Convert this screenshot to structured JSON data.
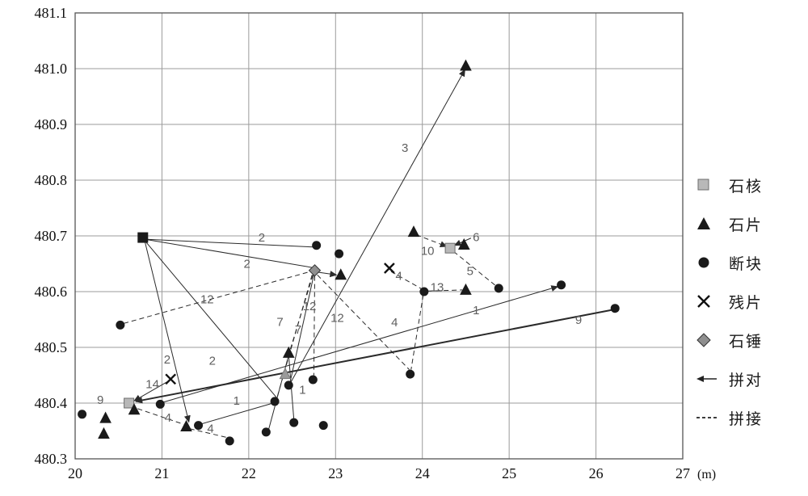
{
  "figure": {
    "unit_label": "(m)"
  },
  "legend": {
    "items": [
      {
        "label": "石核",
        "marker": "square-gray"
      },
      {
        "label": "石片",
        "marker": "triangle-black"
      },
      {
        "label": "断块",
        "marker": "circle-black"
      },
      {
        "label": "残片",
        "marker": "x-mark"
      },
      {
        "label": "石锤",
        "marker": "diamond-gray"
      },
      {
        "label": "拼对",
        "marker": "solid-arrow"
      },
      {
        "label": "拼接",
        "marker": "dashed-line"
      }
    ]
  },
  "chart_data": {
    "type": "scatter",
    "title": "",
    "xlabel": "(m)",
    "ylabel": "",
    "xlim": [
      20,
      27
    ],
    "ylim": [
      480.3,
      481.1
    ],
    "x_ticks": [
      "20",
      "21",
      "22",
      "23",
      "24",
      "25",
      "26",
      "27"
    ],
    "y_ticks": [
      "480.3",
      "480.4",
      "480.5",
      "480.6",
      "480.7",
      "480.8",
      "480.9",
      "481.0",
      "481.1"
    ],
    "grid": true,
    "legend_position": "right",
    "series": [
      {
        "name": "石核",
        "marker": "square",
        "color": "#b8b8b8",
        "stroke": "#6e6e6e",
        "points": [
          [
            20.62,
            480.4
          ],
          [
            24.32,
            480.678
          ]
        ]
      },
      {
        "name": "石核",
        "marker": "square",
        "color": "#1a1a1a",
        "stroke": "#1a1a1a",
        "points": [
          [
            20.78,
            480.697
          ]
        ]
      },
      {
        "name": "石片",
        "marker": "triangle",
        "color": "#1a1a1a",
        "stroke": "#1a1a1a",
        "points": [
          [
            24.5,
            481.005
          ],
          [
            23.9,
            480.707
          ],
          [
            23.06,
            480.63
          ],
          [
            24.48,
            480.684
          ],
          [
            24.5,
            480.603
          ],
          [
            22.46,
            480.49
          ],
          [
            21.28,
            480.358
          ],
          [
            20.35,
            480.373
          ],
          [
            20.33,
            480.345
          ],
          [
            20.68,
            480.388
          ]
        ]
      },
      {
        "name": "石片",
        "marker": "triangle",
        "color": "#9a9a9a",
        "stroke": "#777777",
        "points": [
          [
            22.42,
            480.452
          ]
        ]
      },
      {
        "name": "断块",
        "marker": "circle",
        "color": "#1a1a1a",
        "stroke": "#1a1a1a",
        "points": [
          [
            20.08,
            480.38
          ],
          [
            20.52,
            480.54
          ],
          [
            22.78,
            480.683
          ],
          [
            23.04,
            480.668
          ],
          [
            25.6,
            480.612
          ],
          [
            26.22,
            480.57
          ],
          [
            24.88,
            480.606
          ],
          [
            24.02,
            480.6
          ],
          [
            23.86,
            480.452
          ],
          [
            22.74,
            480.442
          ],
          [
            22.46,
            480.432
          ],
          [
            22.3,
            480.403
          ],
          [
            22.52,
            480.365
          ],
          [
            22.86,
            480.36
          ],
          [
            22.2,
            480.348
          ],
          [
            21.78,
            480.332
          ],
          [
            21.42,
            480.36
          ],
          [
            20.98,
            480.398
          ]
        ]
      },
      {
        "name": "残片",
        "marker": "x",
        "color": "#111111",
        "stroke": "#111111",
        "points": [
          [
            21.1,
            480.443
          ],
          [
            23.62,
            480.642
          ]
        ]
      },
      {
        "name": "石锤",
        "marker": "diamond",
        "color": "#8f8f8f",
        "stroke": "#333333",
        "points": [
          [
            22.76,
            480.638
          ]
        ]
      }
    ],
    "refit_lines": [
      {
        "group": "3",
        "style": "solid",
        "arrow": true,
        "width": 1,
        "from": [
          22.48,
          480.436
        ],
        "to": [
          24.49,
          480.998
        ]
      },
      {
        "group": "2",
        "style": "solid",
        "arrow": false,
        "width": 1,
        "from": [
          20.8,
          480.694
        ],
        "to": [
          22.74,
          480.68
        ]
      },
      {
        "group": "2",
        "style": "solid",
        "arrow": false,
        "width": 1,
        "from": [
          20.8,
          480.694
        ],
        "to": [
          22.74,
          480.643
        ]
      },
      {
        "group": "2",
        "style": "solid",
        "arrow": true,
        "width": 1,
        "from": [
          20.8,
          480.692
        ],
        "to": [
          21.31,
          480.366
        ]
      },
      {
        "group": "2",
        "style": "solid",
        "arrow": false,
        "width": 1,
        "from": [
          20.8,
          480.692
        ],
        "to": [
          22.32,
          480.41
        ]
      },
      {
        "group": "1",
        "style": "solid",
        "arrow": true,
        "width": 1,
        "from": [
          20.98,
          480.4
        ],
        "to": [
          25.56,
          480.609
        ]
      },
      {
        "group": "9",
        "style": "solid",
        "arrow": true,
        "width": 2,
        "from": [
          26.18,
          480.567
        ],
        "to": [
          20.7,
          480.403
        ]
      },
      {
        "group": "14",
        "style": "solid",
        "arrow": true,
        "width": 1,
        "from": [
          21.08,
          480.44
        ],
        "to": [
          20.68,
          480.404
        ]
      },
      {
        "group": "1",
        "style": "solid",
        "arrow": false,
        "width": 1,
        "from": [
          21.44,
          480.362
        ],
        "to": [
          22.28,
          480.4
        ]
      },
      {
        "group": "",
        "style": "solid",
        "arrow": false,
        "width": 1,
        "from": [
          22.46,
          480.486
        ],
        "to": [
          22.52,
          480.37
        ]
      },
      {
        "group": "",
        "style": "solid",
        "arrow": false,
        "width": 1,
        "from": [
          22.46,
          480.486
        ],
        "to": [
          22.23,
          480.353
        ]
      },
      {
        "group": "",
        "style": "solid",
        "arrow": true,
        "width": 1,
        "from": [
          22.79,
          480.635
        ],
        "to": [
          23.01,
          480.63
        ]
      },
      {
        "group": "7",
        "style": "solid",
        "arrow": false,
        "width": 1,
        "from": [
          22.75,
          480.63
        ],
        "to": [
          22.48,
          480.44
        ]
      },
      {
        "group": "6",
        "style": "solid",
        "arrow": true,
        "width": 1,
        "from": [
          24.56,
          480.696
        ],
        "to": [
          24.37,
          480.683
        ]
      },
      {
        "group": "12",
        "style": "dashed",
        "arrow": false,
        "width": 1,
        "from": [
          20.56,
          480.543
        ],
        "to": [
          22.71,
          480.636
        ]
      },
      {
        "group": "12",
        "style": "dashed",
        "arrow": false,
        "width": 1,
        "from": [
          22.76,
          480.628
        ],
        "to": [
          22.75,
          480.45
        ]
      },
      {
        "group": "12",
        "style": "dashed",
        "arrow": false,
        "width": 1,
        "from": [
          22.79,
          480.63
        ],
        "to": [
          23.85,
          480.46
        ]
      },
      {
        "group": "7",
        "style": "dashed",
        "arrow": false,
        "width": 1,
        "from": [
          22.73,
          480.63
        ],
        "to": [
          22.33,
          480.412
        ]
      },
      {
        "group": "7",
        "style": "dashed",
        "arrow": false,
        "width": 1,
        "from": [
          22.74,
          480.63
        ],
        "to": [
          22.48,
          480.497
        ]
      },
      {
        "group": "4",
        "style": "dashed",
        "arrow": false,
        "width": 1,
        "from": [
          20.72,
          480.39
        ],
        "to": [
          21.25,
          480.362
        ]
      },
      {
        "group": "4",
        "style": "dashed",
        "arrow": false,
        "width": 1,
        "from": [
          21.32,
          480.354
        ],
        "to": [
          21.76,
          480.338
        ]
      },
      {
        "group": "4",
        "style": "dashed",
        "arrow": false,
        "width": 1,
        "from": [
          23.64,
          480.636
        ],
        "to": [
          23.99,
          480.605
        ]
      },
      {
        "group": "4",
        "style": "dashed",
        "arrow": false,
        "width": 1,
        "from": [
          24.01,
          480.594
        ],
        "to": [
          23.87,
          480.46
        ]
      },
      {
        "group": "10",
        "style": "dashed",
        "arrow": true,
        "width": 1,
        "from": [
          23.93,
          480.702
        ],
        "to": [
          24.28,
          480.681
        ]
      },
      {
        "group": "5",
        "style": "dashed",
        "arrow": false,
        "width": 1,
        "from": [
          24.36,
          480.672
        ],
        "to": [
          24.85,
          480.61
        ]
      },
      {
        "group": "13",
        "style": "dashed",
        "arrow": false,
        "width": 1,
        "from": [
          24.06,
          480.601
        ],
        "to": [
          24.46,
          480.603
        ]
      }
    ],
    "line_labels": [
      {
        "text": "3",
        "x": 23.8,
        "y": 480.858
      },
      {
        "text": "2",
        "x": 22.15,
        "y": 480.697
      },
      {
        "text": "2",
        "x": 21.98,
        "y": 480.65
      },
      {
        "text": "2",
        "x": 21.06,
        "y": 480.478
      },
      {
        "text": "2",
        "x": 21.58,
        "y": 480.476
      },
      {
        "text": "12",
        "x": 21.52,
        "y": 480.586
      },
      {
        "text": "12",
        "x": 22.7,
        "y": 480.574
      },
      {
        "text": "12",
        "x": 23.02,
        "y": 480.553
      },
      {
        "text": "7",
        "x": 22.36,
        "y": 480.546
      },
      {
        "text": "7",
        "x": 22.57,
        "y": 480.532
      },
      {
        "text": "4",
        "x": 23.73,
        "y": 480.628
      },
      {
        "text": "4",
        "x": 23.68,
        "y": 480.545
      },
      {
        "text": "10",
        "x": 24.06,
        "y": 480.673
      },
      {
        "text": "6",
        "x": 24.62,
        "y": 480.698
      },
      {
        "text": "13",
        "x": 24.17,
        "y": 480.608
      },
      {
        "text": "5",
        "x": 24.55,
        "y": 480.637
      },
      {
        "text": "1",
        "x": 24.62,
        "y": 480.567
      },
      {
        "text": "1",
        "x": 21.86,
        "y": 480.404
      },
      {
        "text": "1",
        "x": 22.62,
        "y": 480.424
      },
      {
        "text": "9",
        "x": 20.29,
        "y": 480.406
      },
      {
        "text": "9",
        "x": 25.8,
        "y": 480.549
      },
      {
        "text": "14",
        "x": 20.89,
        "y": 480.434
      },
      {
        "text": "4",
        "x": 21.07,
        "y": 480.374
      },
      {
        "text": "4",
        "x": 21.56,
        "y": 480.354
      }
    ]
  }
}
